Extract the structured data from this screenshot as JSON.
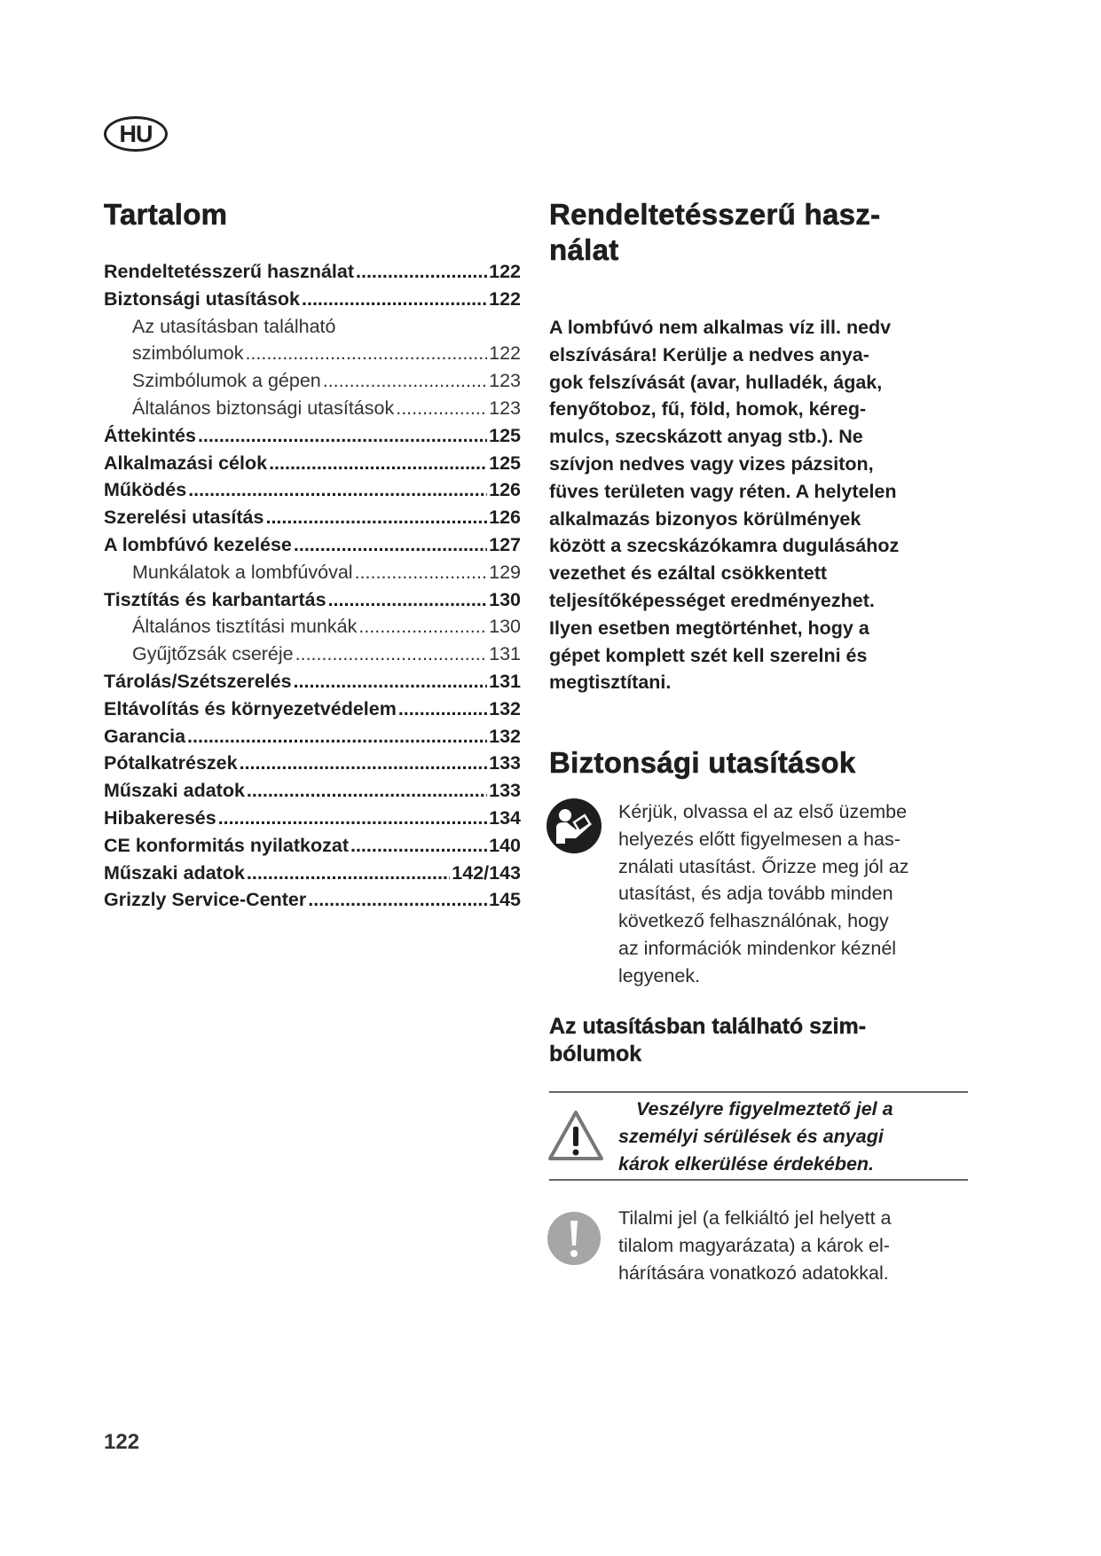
{
  "language_badge": "HU",
  "toc": {
    "title": "Tartalom",
    "entries": [
      {
        "label": "Rendeltetésszerű használat",
        "page": "122",
        "level": 1
      },
      {
        "label": "Biztonsági utasítások",
        "page": "122",
        "level": 1
      },
      {
        "label": "Az utasításban található",
        "page": "",
        "level": 2
      },
      {
        "label": "szimbólumok",
        "page": "122",
        "level": 2
      },
      {
        "label": "Szimbólumok a gépen",
        "page": "123",
        "level": 2
      },
      {
        "label": "Általános biztonsági utasítások",
        "page": "123",
        "level": 2
      },
      {
        "label": "Áttekintés",
        "page": "125",
        "level": 1
      },
      {
        "label": "Alkalmazási célok",
        "page": "125",
        "level": 1
      },
      {
        "label": "Működés",
        "page": "126",
        "level": 1
      },
      {
        "label": "Szerelési utasítás",
        "page": "126",
        "level": 1
      },
      {
        "label": "A lombfúvó kezelése",
        "page": "127",
        "level": 1
      },
      {
        "label": "Munkálatok a lombfúvóval",
        "page": "129",
        "level": 2
      },
      {
        "label": "Tisztítás és karbantartás",
        "page": "130",
        "level": 1
      },
      {
        "label": "Általános tisztítási munkák",
        "page": "130",
        "level": 2
      },
      {
        "label": "Gyűjtőzsák cseréje",
        "page": "131",
        "level": 2
      },
      {
        "label": "Tárolás/Szétszerelés",
        "page": "131",
        "level": 1
      },
      {
        "label": "Eltávolítás és környezetvédelem",
        "page": "132",
        "level": 1
      },
      {
        "label": "Garancia",
        "page": "132",
        "level": 1
      },
      {
        "label": "Pótalkatrészek",
        "page": "133",
        "level": 1
      },
      {
        "label": "Műszaki adatok",
        "page": "133",
        "level": 1
      },
      {
        "label": "Hibakeresés",
        "page": "134",
        "level": 1
      },
      {
        "label": "CE konformitás nyilatkozat",
        "page": "140",
        "level": 1
      },
      {
        "label": "Műszaki adatok",
        "page": "142/143",
        "level": 1
      },
      {
        "label": "Grizzly Service-Center",
        "page": "145",
        "level": 1
      }
    ]
  },
  "intended_use": {
    "title_lines": [
      "Rendeltetésszerű hasz-",
      "nálat"
    ],
    "body_lines": [
      "A lombfúvó nem alkalmas víz ill. nedv",
      "elszívására! Kerülje a nedves anya-",
      "gok felszívását (avar, hulladék, ágak,",
      "fenyőtoboz, fű, föld, homok, kéreg-",
      "mulcs, szecskázott anyag stb.). Ne",
      "szívjon nedves vagy vizes pázsiton,",
      "füves területen vagy réten. A helytelen",
      "alkalmazás bizonyos körülmények",
      "között a szecskázókamra dugulásához",
      "vezethet és ezáltal csökkentett",
      "teljesítőképességet eredményezhet.",
      "Ilyen esetben megtörténhet, hogy a",
      "gépet komplett szét kell szerelni és",
      "megtisztítani."
    ]
  },
  "safety": {
    "title": "Biztonsági utasítások",
    "read_manual_icon": "read-manual-icon",
    "read_lines": [
      "Kérjük, olvassa el az első üzembe",
      "helyezés előtt figyelmesen a has-",
      "ználati utasítást. Őrizze meg jól az",
      "utasítást, és adja tovább minden",
      "következő felhasználónak, hogy",
      "az információk mindenkor kéznél",
      "legyenek."
    ],
    "symbols_title_lines": [
      "Az utasításban található szim-",
      "bólumok"
    ],
    "warning_icon": "warning-triangle-icon",
    "warning_lines": [
      "Veszélyre figyelmeztető jel a",
      "személyi sérülések és anyagi",
      "károk elkerülése érdekében."
    ],
    "prohibition_icon": "exclamation-circle-icon",
    "prohibition_color": "#a6a6a6",
    "prohibition_lines": [
      "Tilalmi jel (a felkiáltó jel helyett a",
      "tilalom magyarázata) a károk el-",
      "hárítására vonatkozó adatokkal."
    ]
  },
  "page_number": "122"
}
